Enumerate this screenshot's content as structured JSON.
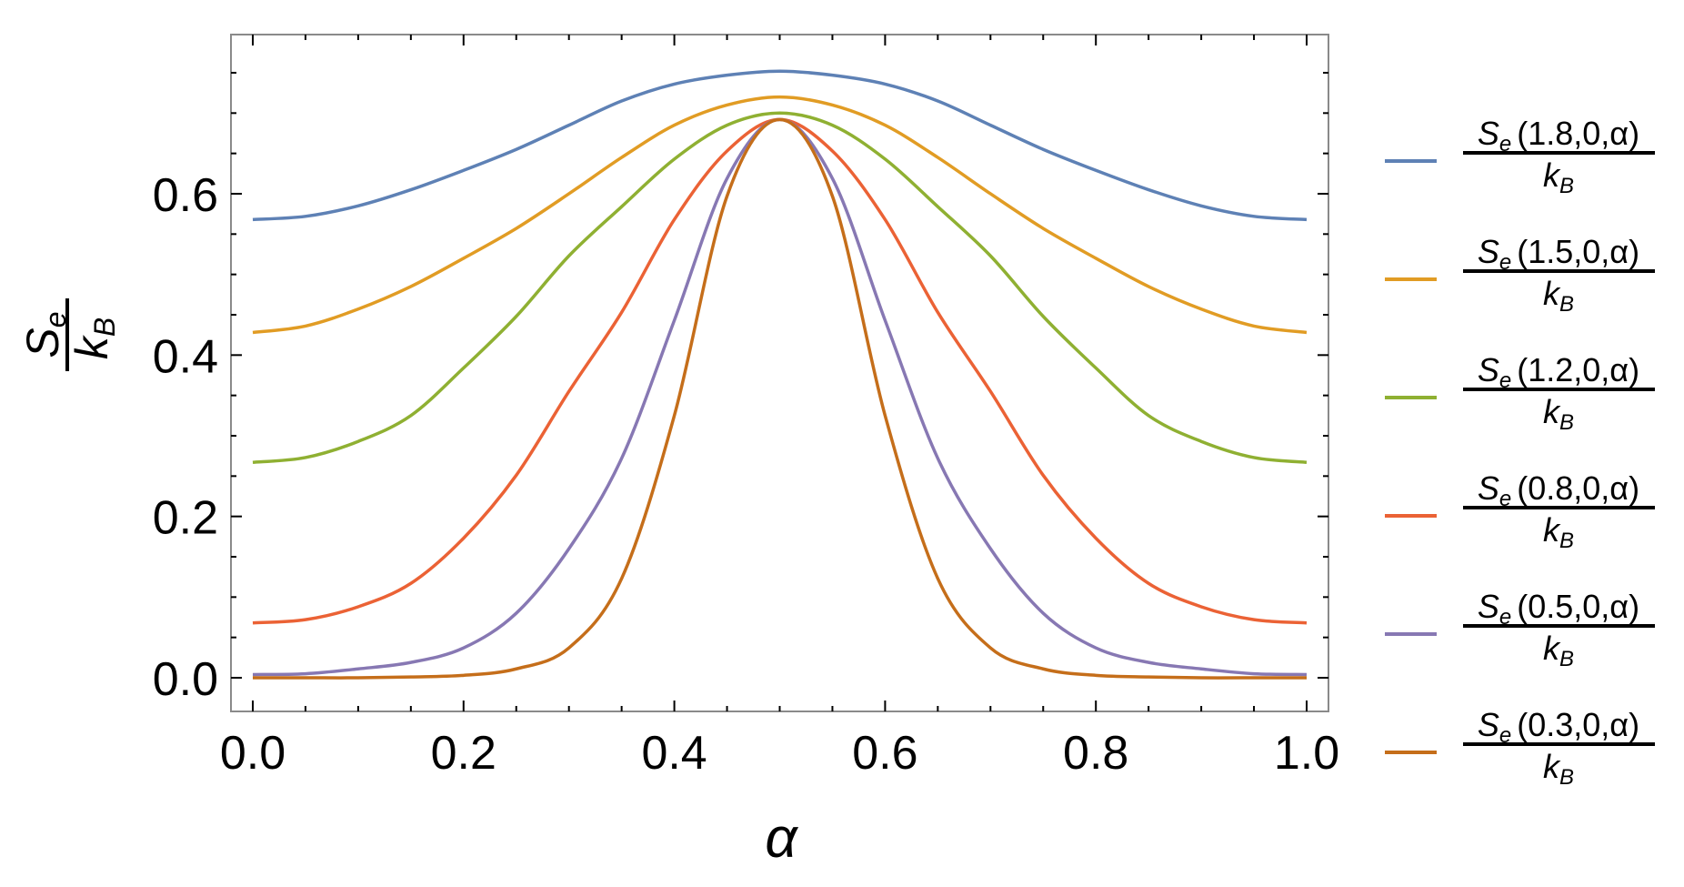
{
  "chart_data": {
    "type": "line",
    "xlabel": "α",
    "ylabel": {
      "numerator": "S",
      "numerator_sub": "e",
      "denominator": "k",
      "denominator_sub": "B"
    },
    "xlim": [
      -0.02,
      1.02
    ],
    "ylim": [
      -0.041,
      0.797
    ],
    "x_ticks": [
      0.0,
      0.2,
      0.4,
      0.6,
      0.8,
      1.0
    ],
    "x_tick_labels": [
      "0.0",
      "0.2",
      "0.4",
      "0.6",
      "0.8",
      "1.0"
    ],
    "y_ticks": [
      0.0,
      0.2,
      0.4,
      0.6
    ],
    "y_tick_labels": [
      "0.0",
      "0.2",
      "0.4",
      "0.6"
    ],
    "grid": false,
    "legend_position": "right",
    "x": [
      0,
      0.05,
      0.1,
      0.15,
      0.2,
      0.25,
      0.3,
      0.35,
      0.4,
      0.45,
      0.5,
      0.55,
      0.6,
      0.65,
      0.7,
      0.75,
      0.8,
      0.85,
      0.9,
      0.95,
      1.0
    ],
    "series": [
      {
        "name": "Se(1.8,0,α)/kB",
        "label_num": "(1.8,0,α)",
        "color": "#5E81B5",
        "values": [
          0.568,
          0.572,
          0.585,
          0.605,
          0.629,
          0.655,
          0.685,
          0.715,
          0.736,
          0.747,
          0.752,
          0.747,
          0.736,
          0.715,
          0.685,
          0.655,
          0.629,
          0.605,
          0.585,
          0.572,
          0.568
        ]
      },
      {
        "name": "Se(1.5,0,α)/kB",
        "label_num": "(1.5,0,α)",
        "color": "#E19C24",
        "values": [
          0.428,
          0.436,
          0.457,
          0.485,
          0.52,
          0.557,
          0.6,
          0.645,
          0.685,
          0.71,
          0.72,
          0.71,
          0.685,
          0.645,
          0.6,
          0.557,
          0.52,
          0.485,
          0.457,
          0.436,
          0.428
        ]
      },
      {
        "name": "Se(1.2,0,α)/kB",
        "label_num": "(1.2,0,α)",
        "color": "#8FB032",
        "values": [
          0.267,
          0.273,
          0.293,
          0.325,
          0.384,
          0.448,
          0.523,
          0.584,
          0.643,
          0.685,
          0.7,
          0.685,
          0.643,
          0.584,
          0.523,
          0.448,
          0.384,
          0.325,
          0.293,
          0.273,
          0.267
        ]
      },
      {
        "name": "Se(0.8,0,α)/kB",
        "label_num": "(0.8,0,α)",
        "color": "#EB6235",
        "values": [
          0.068,
          0.072,
          0.088,
          0.117,
          0.173,
          0.251,
          0.355,
          0.453,
          0.568,
          0.653,
          0.692,
          0.653,
          0.568,
          0.453,
          0.355,
          0.251,
          0.173,
          0.117,
          0.088,
          0.072,
          0.068
        ]
      },
      {
        "name": "Se(0.5,0,α)/kB",
        "label_num": "(0.5,0,α)",
        "color": "#8778B3",
        "values": [
          0.004,
          0.005,
          0.011,
          0.019,
          0.037,
          0.08,
          0.16,
          0.272,
          0.443,
          0.619,
          0.692,
          0.619,
          0.443,
          0.272,
          0.16,
          0.08,
          0.037,
          0.019,
          0.011,
          0.005,
          0.004
        ]
      },
      {
        "name": "Se(0.3,0,α)/kB",
        "label_num": "(0.3,0,α)",
        "color": "#C56E1A",
        "values": [
          0.0,
          0.0,
          0.0,
          0.001,
          0.003,
          0.011,
          0.037,
          0.123,
          0.325,
          0.597,
          0.692,
          0.597,
          0.325,
          0.123,
          0.037,
          0.011,
          0.003,
          0.001,
          0.0,
          0.0,
          0.0
        ]
      }
    ]
  }
}
